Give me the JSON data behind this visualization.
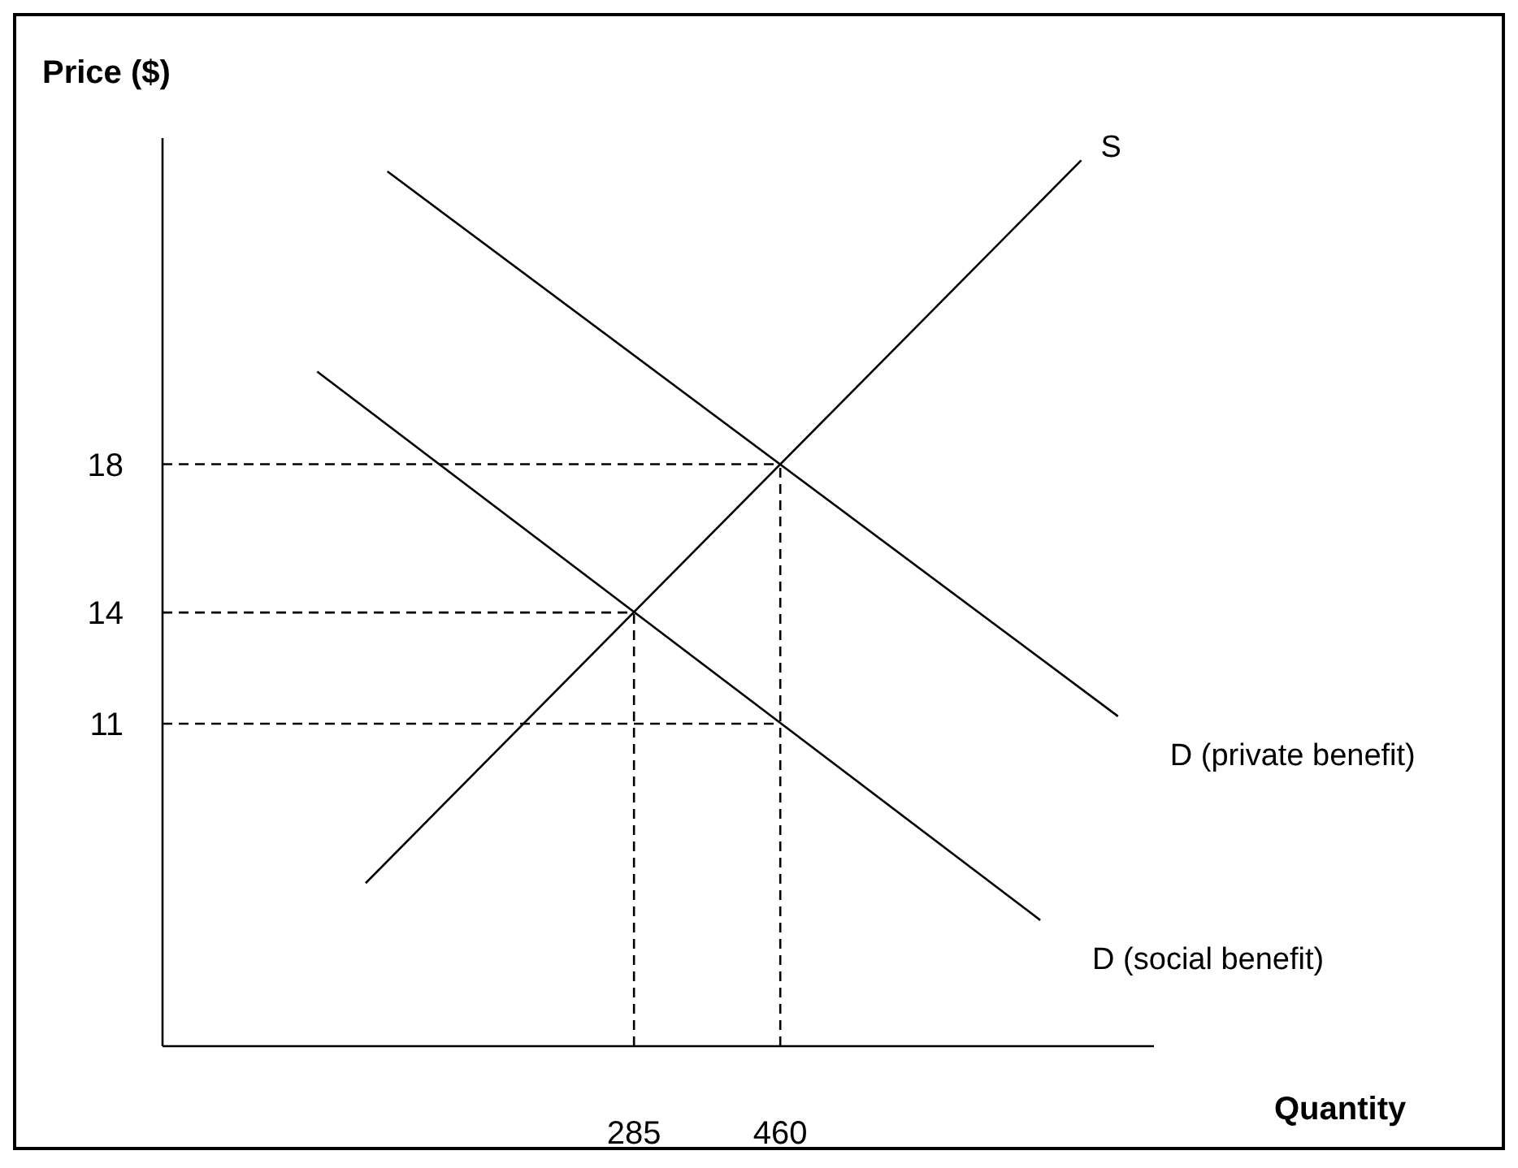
{
  "chart_data": {
    "type": "line",
    "xlabel": "Quantity",
    "ylabel": "Price ($)",
    "xlim": [
      -279,
      907
    ],
    "ylim": [
      2.3,
      26.8
    ],
    "xticks": [
      285,
      460
    ],
    "yticks": [
      11,
      14,
      18
    ],
    "grid": false,
    "marker": "none",
    "series": [
      {
        "name": "S",
        "color": "#000000",
        "line_style": "solid",
        "x": [
          -36,
          820
        ],
        "values": [
          6.7,
          26.2
        ]
      },
      {
        "name": "D (private benefit)",
        "color": "#000000",
        "line_style": "solid",
        "x": [
          -10,
          864
        ],
        "values": [
          25.9,
          11.2
        ]
      },
      {
        "name": "D (social benefit)",
        "color": "#000000",
        "line_style": "solid",
        "x": [
          -94,
          771
        ],
        "values": [
          20.5,
          5.7
        ]
      },
      {
        "color": "#000000",
        "line_style": "dashed",
        "x": [
          -279,
          460
        ],
        "values": [
          18,
          18
        ]
      },
      {
        "color": "#000000",
        "line_style": "dashed",
        "x": [
          -279,
          285
        ],
        "values": [
          14,
          14
        ]
      },
      {
        "color": "#000000",
        "line_style": "dashed",
        "x": [
          -279,
          460
        ],
        "values": [
          11,
          11
        ]
      },
      {
        "color": "#000000",
        "line_style": "dashed",
        "x": [
          285,
          285
        ],
        "values": [
          2.3,
          14
        ]
      },
      {
        "color": "#000000",
        "line_style": "dashed",
        "x": [
          460,
          460
        ],
        "values": [
          2.3,
          18
        ]
      }
    ]
  }
}
